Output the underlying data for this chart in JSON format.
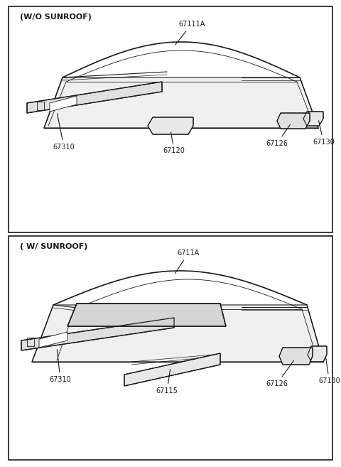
{
  "bg_color": "#ffffff",
  "line_color": "#1a1a1a",
  "fig_width": 4.8,
  "fig_height": 6.57,
  "dpi": 100,
  "font_size_title": 8.0,
  "font_size_label": 7.0,
  "panel1_title": "(W/O SUNROOF)",
  "panel2_title": "( W/ SUNROOF)",
  "label_67111A": "67111A",
  "label_67310_1": "67310",
  "label_67120": "67120",
  "label_67126_1": "67126",
  "label_67130_1": "67130",
  "label_6711A": "6711A",
  "label_67310_2": "67310",
  "label_67115": "67115",
  "label_67126_2": "67126",
  "label_67130_2": "67130"
}
